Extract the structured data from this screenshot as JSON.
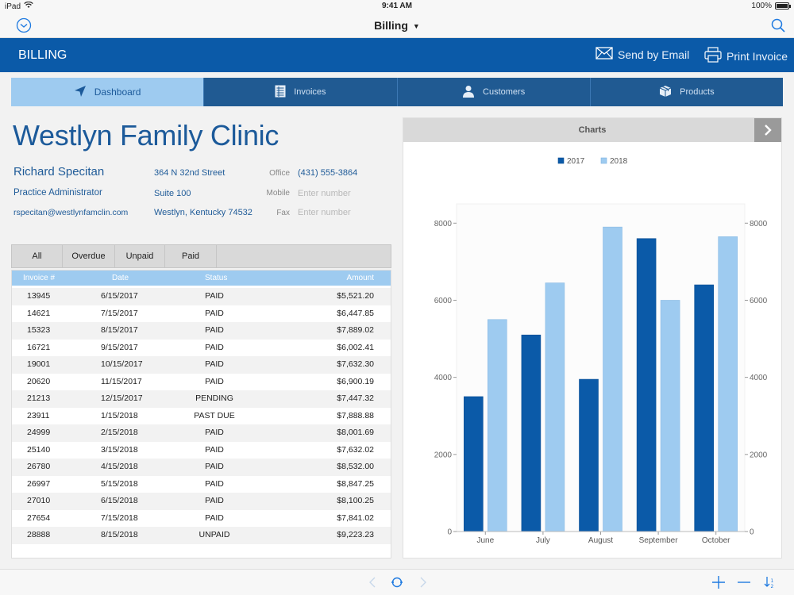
{
  "status_bar": {
    "device": "iPad",
    "time": "9:41 AM",
    "battery": "100%"
  },
  "nav": {
    "title": "Billing"
  },
  "header": {
    "title": "BILLING",
    "send_email": "Send by Email",
    "print_invoice": "Print Invoice"
  },
  "tabs": [
    {
      "label": "Dashboard",
      "icon": "navigation-arrow-icon"
    },
    {
      "label": "Invoices",
      "icon": "invoice-icon"
    },
    {
      "label": "Customers",
      "icon": "person-icon"
    },
    {
      "label": "Products",
      "icon": "box-icon"
    }
  ],
  "clinic": {
    "name": "Westlyn Family Clinic",
    "contact_name": "Richard Specitan",
    "contact_title": "Practice Administrator",
    "email": "rspecitan@westlynfamclin.com",
    "address1": "364 N 32nd Street",
    "address2": "Suite 100",
    "address3": "Westlyn, Kentucky 74532",
    "office_label": "Office",
    "office_value": "(431) 555-3864",
    "mobile_label": "Mobile",
    "mobile_placeholder": "Enter number",
    "fax_label": "Fax",
    "fax_placeholder": "Enter number"
  },
  "filters": [
    "All",
    "Overdue",
    "Unpaid",
    "Paid"
  ],
  "invoice_table": {
    "columns": [
      "Invoice #",
      "Date",
      "Status",
      "Amount"
    ],
    "rows": [
      [
        "13945",
        "6/15/2017",
        "PAID",
        "$5,521.20"
      ],
      [
        "14621",
        "7/15/2017",
        "PAID",
        "$6,447.85"
      ],
      [
        "15323",
        "8/15/2017",
        "PAID",
        "$7,889.02"
      ],
      [
        "16721",
        "9/15/2017",
        "PAID",
        "$6,002.41"
      ],
      [
        "19001",
        "10/15/2017",
        "PAID",
        "$7,632.30"
      ],
      [
        "20620",
        "11/15/2017",
        "PAID",
        "$6,900.19"
      ],
      [
        "21213",
        "12/15/2017",
        "PENDING",
        "$7,447.32"
      ],
      [
        "23911",
        "1/15/2018",
        "PAST DUE",
        "$7,888.88"
      ],
      [
        "24999",
        "2/15/2018",
        "PAID",
        "$8,001.69"
      ],
      [
        "25140",
        "3/15/2018",
        "PAID",
        "$7,632.02"
      ],
      [
        "26780",
        "4/15/2018",
        "PAID",
        "$8,532.00"
      ],
      [
        "26997",
        "5/15/2018",
        "PAID",
        "$8,847.25"
      ],
      [
        "27010",
        "6/15/2018",
        "PAID",
        "$8,100.25"
      ],
      [
        "27654",
        "7/15/2018",
        "PAID",
        "$7,841.02"
      ],
      [
        "28888",
        "8/15/2018",
        "UNPAID",
        "$9,223.23"
      ]
    ]
  },
  "chart_panel": {
    "title": "Charts"
  },
  "colors": {
    "series_2017": "#0b5aa8",
    "series_2018": "#9ecbf0",
    "header_blue": "#0b5aa8"
  },
  "chart_data": {
    "type": "bar",
    "categories": [
      "June",
      "July",
      "August",
      "September",
      "October"
    ],
    "series": [
      {
        "name": "2017",
        "values": [
          3500,
          5100,
          3950,
          7600,
          6400
        ]
      },
      {
        "name": "2018",
        "values": [
          5500,
          6450,
          7900,
          6000,
          7650
        ]
      }
    ],
    "ylim": [
      0,
      8500
    ],
    "yticks": [
      0,
      2000,
      4000,
      6000,
      8000
    ],
    "secondary_yticks": [
      0,
      2000,
      4000,
      6000,
      8000
    ],
    "legend_position": "top-center",
    "grid": false
  }
}
